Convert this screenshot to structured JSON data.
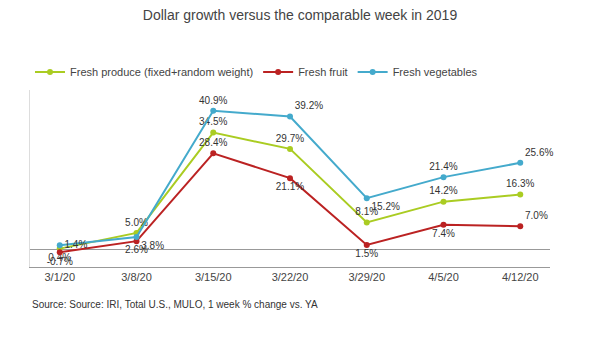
{
  "chart_data": {
    "type": "line",
    "title": "Dollar growth versus the comparable week in 2019",
    "categories": [
      "3/1/20",
      "3/8/20",
      "3/15/20",
      "3/22/20",
      "3/29/20",
      "4/5/20",
      "4/12/20"
    ],
    "series": [
      {
        "name": "Fresh produce (fixed+random weight)",
        "color": "#aacc22",
        "values": [
          0.4,
          5.0,
          34.5,
          29.7,
          8.1,
          14.2,
          16.3
        ],
        "value_labels": [
          "0.4%",
          "5.0%",
          "34.5%",
          "29.7%",
          "8.1%",
          "14.2%",
          "16.3%"
        ]
      },
      {
        "name": "Fresh fruit",
        "color": "#bb2222",
        "values": [
          -0.7,
          2.6,
          28.4,
          21.1,
          1.5,
          7.4,
          7.0
        ],
        "value_labels": [
          "-0.7%",
          "2.6%",
          "28.4%",
          "21.1%",
          "1.5%",
          "7.4%",
          "7.0%"
        ]
      },
      {
        "name": "Fresh vegetables",
        "color": "#44aacc",
        "values": [
          1.4,
          3.8,
          40.9,
          39.2,
          15.2,
          21.4,
          25.6
        ],
        "value_labels": [
          "1.4%",
          "3.8%",
          "40.9%",
          "39.2%",
          "15.2%",
          "21.4%",
          "25.6%"
        ]
      }
    ],
    "annotations": [
      "Source: Source: IRI, Total U.S., MULO, 1 week % change vs. YA"
    ],
    "ylim": [
      -5,
      47
    ],
    "data_labels": true,
    "tick_labels": "x",
    "grid": false,
    "legend": "top",
    "marker": "circle",
    "line_style": "solid"
  }
}
